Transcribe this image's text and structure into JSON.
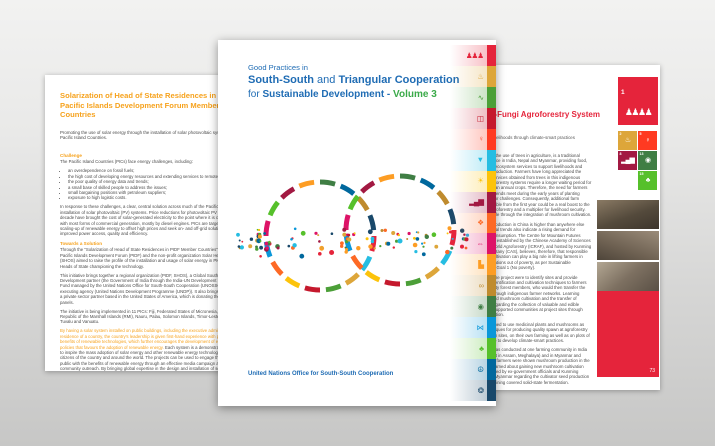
{
  "left_page": {
    "title": "Solarization of Head of State Residences in Pacific Islands Development Forum Member Countries",
    "subtitle": "Promoting the use of solar energy through the installation of solar photovoltaic systems in Pacific Island Countries.",
    "sections": [
      {
        "heading": "Challenge",
        "intro": "The Pacific Island Countries (PICs) face energy challenges, including:",
        "bullets": [
          "an overdependence on fossil fuels;",
          "the high cost of developing energy resources and extending services to remote populations;",
          "the poor quality of energy data and trends;",
          "a small base of skilled people to address the issues;",
          "small bargaining positions with petroleum suppliers;",
          "exposure to high logistic costs."
        ],
        "paragraphs": [
          "In response to these challenges, a clear, central solution across much of the Pacific is the installation of solar photovoltaic (PV) systems. Price reductions for photovoltaic PV over the past decade have brought the cost of solar-generated electricity to the point where it is competitive with most forms of commercial generation, mostly by diesel engines. PICs are targeting the scaling-up of renewable energy to offset high prices and seek on- and off-grid solutions for improved power access, quality and efficiency."
        ]
      },
      {
        "heading": "Towards a Solution",
        "paragraphs": [
          "Through the \"Solarization of Head of State Residences in PIDF Member Countries\" initiative, the Pacific Islands Development Forum (PIDF) and the non-profit organization Solar Head of State (SHOS) aimed to raise the profile of the installation and usage of solar energy in PICs with the Heads of State championing the technology.",
          "This initiative brings together a regional organization (PIDF, SHOS), a Global South Development partner (the Government of India through the India-UN Development Partnership Fund managed by the United Nations Office for South-South Cooperation (UNOSSC)) and an executing agency (United Nations Development Programme (UNDP)). It also brings in Solavita, a private sector partner based in the United States of America, which is donating the solar panels.",
          "The initiative is being implemented in 11 PICs: Fiji, Federated States of Micronesia, Kiribati, Republic of the Marshall Islands (RMI), Nauru, Palau, Solomon Islands, Timor-Leste, Tonga, Tuvalu and Vanuatu."
        ],
        "highlight_paragraph": {
          "lead": "By having a solar system installed on public buildings, including the executive administrative residence of a country, the country's leadership is given first-hand experience with proven benefits of renewable technologies, which further encourages the development of energy policies that favours the adoption of renewable energy.",
          "rest": "Each system is a demonstration project to inspire the mass adoption of solar energy and other renewable energy technologies by the citizens of the country and around the world. The projects can be used to engage the general public with the benefits of renewable energy through an effective media campaign and community outreach. By bringing global expertise in the design and installation of solar systems to each project, SHOS and PIDF facilitate the transfer of critical skills and knowledge to the participating PICs."
        }
      }
    ]
  },
  "cover_page": {
    "title_line1": "Good Practices in",
    "title_line2_bold1": "South-South",
    "title_line2_mid": " and ",
    "title_line2_bold2": "Triangular Cooperation",
    "title_line3_pre": "for ",
    "title_line3_bold": "Sustainable Development - ",
    "title_line3_volume": "Volume 3",
    "footer": "United Nations Office for South-South Cooperation",
    "accent_blue": "#1F6CB4",
    "accent_green": "#3BAA49",
    "sdg_strip": [
      {
        "name": "no-poverty-icon",
        "color": "#e5243b",
        "glyph": "♟♟♟"
      },
      {
        "name": "zero-hunger-icon",
        "color": "#dda63a",
        "glyph": "♨"
      },
      {
        "name": "good-health-icon",
        "color": "#4c9f38",
        "glyph": "∿"
      },
      {
        "name": "quality-education-icon",
        "color": "#c5192d",
        "glyph": "◫"
      },
      {
        "name": "gender-equality-icon",
        "color": "#ff3a21",
        "glyph": "♀"
      },
      {
        "name": "clean-water-icon",
        "color": "#26bde2",
        "glyph": "▼"
      },
      {
        "name": "affordable-energy-icon",
        "color": "#fcc30b",
        "glyph": "☀"
      },
      {
        "name": "decent-work-icon",
        "color": "#a21942",
        "glyph": "▂▄▆"
      },
      {
        "name": "industry-innovation-icon",
        "color": "#fd6925",
        "glyph": "❖"
      },
      {
        "name": "reduced-inequalities-icon",
        "color": "#dd1367",
        "glyph": "⇔"
      },
      {
        "name": "sustainable-cities-icon",
        "color": "#fd9d24",
        "glyph": "▙"
      },
      {
        "name": "responsible-consumption-icon",
        "color": "#bf8b2e",
        "glyph": "∞"
      },
      {
        "name": "climate-action-icon",
        "color": "#3f7e44",
        "glyph": "◉"
      },
      {
        "name": "life-below-water-icon",
        "color": "#0a97d9",
        "glyph": "⋈"
      },
      {
        "name": "life-on-land-icon",
        "color": "#56c02b",
        "glyph": "♣"
      },
      {
        "name": "peace-justice-icon",
        "color": "#00689d",
        "glyph": "☮"
      },
      {
        "name": "partnerships-icon",
        "color": "#19486a",
        "glyph": "❂"
      }
    ],
    "venn_colors": [
      "#e5243b",
      "#26bde2",
      "#dda63a",
      "#4c9f38",
      "#c5192d",
      "#fcc30b",
      "#fd6925",
      "#0a97d9",
      "#dd1367",
      "#56c02b",
      "#a21942",
      "#fd9d24",
      "#3f7e44",
      "#00689d",
      "#bf8b2e",
      "#19486a"
    ]
  },
  "right_page": {
    "title": "Forest-Fungi Agroforestry System",
    "subtitle": "Enhancing livelihoods through climate-smart practices",
    "paragraphs": [
      "Agroforestry, the use of trees in agriculture, is a traditional farming practice in India, Nepal and Myanmar, providing food, nutrition and ecosystem services to support livelihoods and agricultural production. Farmers have long appreciated the ecosystem services obtained from trees in this indigenous system. Agroforestry systems require a longer waiting period for production than annual crops. Therefore, the need for farmers to make both ends meet during the early years of planting presents major challenges. Consequently, additional farm income available from the first year could be a real boost to the viability of agroforestry and a multiplier for livelihood security. This is possible through the integration of mushroom cultivation.",
      "Mushroom production in China is higher than anywhere else globally. Global trends also indicate a rising demand for mushroom consumption. The Centre for Mountain Futures (CMF), jointly established by the Chinese Academy of Sciences (CAS) and World Agroforestry (ICRAF), and hosted by Kunming Institute of Botany (CAS), believes, therefore, that responsible mushroom cultivation can play a big role in lifting farmers in developing nations out of poverty, as per Sustainable Development Goal 1 (No poverty).",
      "The aims of the project were to identify sites and provide mushroom identification and cultivation techniques to farmers and community forest members, who would then transfer the knowledge through indigenous farmer networks. Learning content around mushroom cultivation and the transfer of knowledge regarding the collection of valuable and edible mushrooms supported communities at project sites through their participation.",
      "Farmers learned to use medicinal plants and mushrooms as well as techniques for producing quality spawn at agroforestry demonstration sites, on their own farming as well as on plots of land set aside to develop climate-smart practices.",
      "The project was conducted at one farming community in India (Jorhat district in Assam, Meghalaya) and in Myanmar and Nepal, where farmers were shown mushroom production in the region and learned about gaining new mushroom cultivation skills, supported by ex-government officials and Kunming University in Myanmar regarding the cultivator seed production chain. The training covered solid-state fermentation."
    ],
    "sdg_big_badge": {
      "number": "1",
      "label": "NO POVERTY",
      "glyph": "♟♟♟♟",
      "color": "#E5243B"
    },
    "sdg_badges": [
      {
        "number": "2",
        "name": "zero-hunger-icon",
        "glyph": "♨",
        "color": "#dda63a"
      },
      {
        "number": "5",
        "name": "gender-equality-icon",
        "glyph": "♀",
        "color": "#ff3a21"
      },
      {
        "number": "8",
        "name": "decent-work-icon",
        "glyph": "▂▄▆",
        "color": "#a21942"
      },
      {
        "number": "13",
        "name": "climate-action-icon",
        "glyph": "◉",
        "color": "#3f7e44"
      },
      {
        "number": "15",
        "name": "life-on-land-icon",
        "glyph": "♣",
        "color": "#56c02b"
      }
    ],
    "page_number": "73"
  }
}
